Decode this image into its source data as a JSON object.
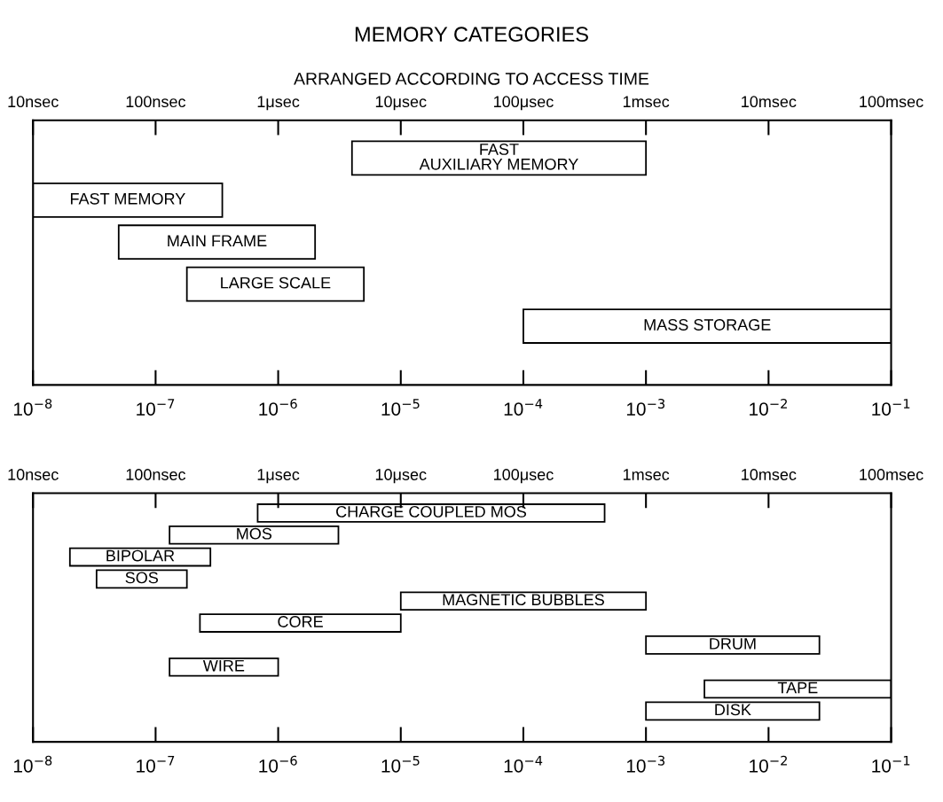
{
  "chart_data": [
    {
      "type": "bar",
      "orientation": "horizontal",
      "title": "MEMORY CATEGORIES",
      "subtitle": "ARRANGED ACCORDING TO ACCESS TIME",
      "log": "x",
      "tick_labels": "x",
      "grid": false,
      "legend": false,
      "color": "#ffffff",
      "categories": [
        "FAST\nAUXILIARY MEMORY",
        "FAST MEMORY",
        "MAIN FRAME",
        "LARGE SCALE",
        "MASS STORAGE"
      ],
      "base": [
        4e-06,
        1e-08,
        5e-08,
        1.8e-07,
        0.0001
      ],
      "values": [
        0.000996,
        3.4e-07,
        1.95e-06,
        4.82e-06,
        0.0999
      ],
      "xlim": [
        1e-08,
        0.1
      ],
      "xticks": [
        {
          "value": 1e-08,
          "label": "10$^{−8}$"
        },
        {
          "value": 1e-07,
          "label": "10$^{−7}$"
        },
        {
          "value": 1e-06,
          "label": "10$^{−6}$"
        },
        {
          "value": 1e-05,
          "label": "10$^{−5}$"
        },
        {
          "value": 0.0001,
          "label": "10$^{−4}$"
        },
        {
          "value": 0.001,
          "label": "10$^{−3}$"
        },
        {
          "value": 0.01,
          "label": "10$^{−2}$"
        },
        {
          "value": 0.1,
          "label": "10$^{−1}$"
        }
      ],
      "annotations": [
        "10nsec",
        "100nsec",
        "1μsec",
        "10μsec",
        "100μsec",
        "1msec",
        "10msec",
        "100msec"
      ]
    },
    {
      "type": "bar",
      "orientation": "horizontal",
      "log": "x",
      "tick_labels": "x",
      "grid": false,
      "legend": false,
      "color": "#ffffff",
      "categories": [
        "CHARGE COUPLED MOS",
        "MOS",
        "BIPOLAR",
        "SOS",
        "MAGNETIC BUBBLES",
        "CORE",
        "DRUM",
        "WIRE",
        "TAPE",
        "DISK"
      ],
      "base": [
        6.8e-07,
        1.3e-07,
        2e-08,
        3.3e-08,
        1e-05,
        2.3e-07,
        0.001,
        1.3e-07,
        0.003,
        0.001
      ],
      "values": [
        0.0004593,
        2.97e-06,
        2.6e-07,
        1.47e-07,
        0.00099,
        9.77e-06,
        0.025,
        8.7e-07,
        0.097,
        0.025
      ],
      "xlim": [
        1e-08,
        0.1
      ],
      "xticks": [
        {
          "value": 1e-08,
          "label": "10$^{−8}$"
        },
        {
          "value": 1e-07,
          "label": "10$^{−7}$"
        },
        {
          "value": 1e-06,
          "label": "10$^{−6}$"
        },
        {
          "value": 1e-05,
          "label": "10$^{−5}$"
        },
        {
          "value": 0.0001,
          "label": "10$^{−4}$"
        },
        {
          "value": 0.001,
          "label": "10$^{−3}$"
        },
        {
          "value": 0.01,
          "label": "10$^{−2}$"
        },
        {
          "value": 0.1,
          "label": "10$^{−1}$"
        }
      ],
      "annotations": [
        "10nsec",
        "100nsec",
        "1μsec",
        "10μsec",
        "100μsec",
        "1msec",
        "10msec",
        "100msec"
      ]
    }
  ]
}
